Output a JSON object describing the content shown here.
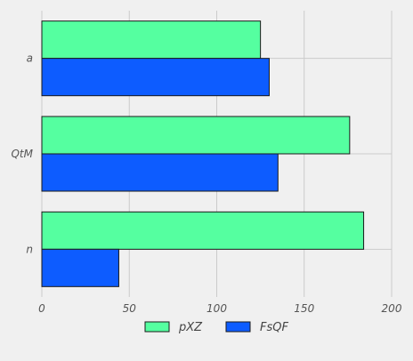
{
  "chart_data": {
    "type": "bar",
    "orientation": "horizontal",
    "categories": [
      "a",
      "QtM",
      "n"
    ],
    "series": [
      {
        "name": "pXZ",
        "values": [
          125,
          176,
          184
        ],
        "color": "#55ffa0"
      },
      {
        "name": "FsQF",
        "values": [
          130,
          135,
          44
        ],
        "color": "#0d5cff"
      }
    ],
    "xlim": [
      0,
      200
    ],
    "xticks": [
      0,
      50,
      100,
      150,
      200
    ],
    "xlabel": "",
    "ylabel": "",
    "grid": true,
    "legend_position": "bottom-center"
  }
}
